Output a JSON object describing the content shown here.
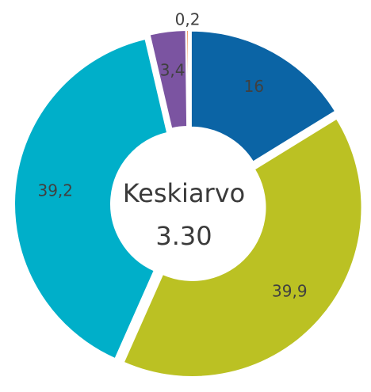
{
  "chart_data": {
    "type": "donut",
    "categories": [
      null,
      null,
      null,
      null,
      null
    ],
    "values": [
      16,
      39.9,
      39.2,
      3.4,
      0.2
    ],
    "value_labels": [
      "16",
      "39,9",
      "39,2",
      "3,4",
      "0,2"
    ],
    "colors": [
      "#0b64a5",
      "#bbc123",
      "#00afc9",
      "#7b54a1",
      "#e9762d"
    ],
    "center_label": "Keskiarvo",
    "center_value": "3.30"
  }
}
